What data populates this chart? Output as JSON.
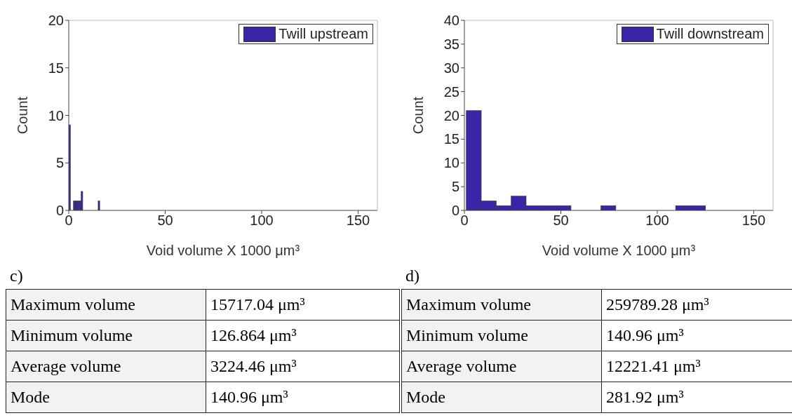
{
  "chart_data": [
    {
      "type": "histogram",
      "xlabel": "Void volume X 1000 μm³",
      "ylabel": "Count",
      "series": [
        {
          "name": "Twill upstream",
          "color": "#3a25a8",
          "values": [
            9,
            0,
            0,
            1,
            1,
            1,
            1,
            1,
            2,
            0,
            0,
            0,
            0,
            0,
            0,
            0,
            0,
            0,
            0,
            1
          ]
        }
      ],
      "bins": [
        0,
        0.8,
        1.6,
        2.4,
        3.2,
        4,
        4.8,
        5.6,
        6.4,
        7.2,
        8,
        8.8,
        9.6,
        10.4,
        11.2,
        12,
        12.8,
        13.6,
        14.4,
        15.2,
        16
      ],
      "xlim": [
        0,
        160
      ],
      "xticks": [
        0,
        50,
        100,
        150
      ],
      "ylim": [
        0,
        20
      ],
      "yticks": [
        0,
        5,
        10,
        15,
        20
      ],
      "grid": false,
      "legend": "top right",
      "annotations": [
        "c)",
        "Maximum volume",
        "15717.04 μm³",
        "Minimum volume",
        "126.864 μm³",
        "Average volume",
        "3224.46 μm³",
        "Mode",
        "140.96 μm³"
      ]
    },
    {
      "type": "histogram",
      "xlabel": "Void volume X 1000 μm³",
      "ylabel": "Count",
      "series": [
        {
          "name": "Twill downstream",
          "color": "#3a25a8",
          "values": [
            21,
            2,
            1,
            3,
            1,
            1,
            1,
            0,
            0,
            1,
            0,
            0,
            0,
            0,
            1,
            1
          ]
        }
      ],
      "bins": [
        1,
        8.75,
        16.5,
        24.25,
        32,
        39.75,
        47.5,
        55.25,
        63,
        70.75,
        78.5,
        86.25,
        94,
        101.75,
        109.5,
        117.25,
        125
      ],
      "xlim": [
        0,
        160
      ],
      "xticks": [
        0,
        50,
        100,
        150
      ],
      "ylim": [
        0,
        40
      ],
      "yticks": [
        0,
        5,
        10,
        15,
        20,
        25,
        30,
        35,
        40
      ],
      "grid": false,
      "legend": "top right",
      "annotations": [
        "d)",
        "Maximum volume",
        "259789.28 μm³",
        "Minimum volume",
        "140.96 μm³",
        "Average volume",
        "12221.41 μm³",
        "Mode",
        "281.92 μm³"
      ]
    }
  ]
}
